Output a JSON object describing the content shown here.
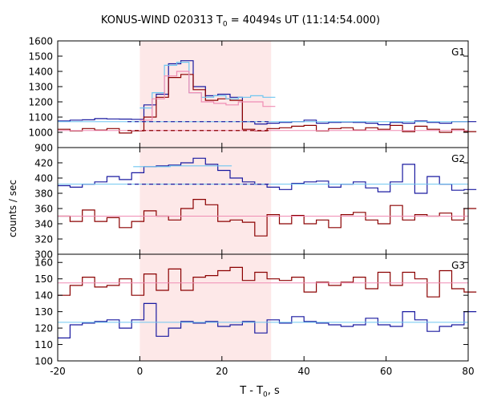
{
  "title": {
    "instrument": "KONUS-WIND 020313 T",
    "t0_sub": "0",
    "rest": " = 40494s UT (11:14:54.000)"
  },
  "xlabel": {
    "main": "T - T",
    "sub": "0",
    "unit": ", s"
  },
  "ylabel": "counts / sec",
  "colors": {
    "blue": "#1a1aa0",
    "red": "#8b0000",
    "light_blue": "#6ec6f0",
    "pink": "#f08cb4",
    "shade": "#fde8e8"
  },
  "chart_data": [
    {
      "type": "line",
      "panel": "G1",
      "xlim": [
        -20,
        80
      ],
      "ylim": [
        900,
        1600
      ],
      "yticks": [
        900,
        1000,
        1100,
        1200,
        1300,
        1400,
        1500,
        1600
      ],
      "xticks": [
        -20,
        0,
        20,
        40,
        60,
        80
      ],
      "shaded_interval": [
        0,
        32
      ],
      "step_width": 3,
      "series": [
        {
          "role": "blue_step",
          "x0": -20,
          "values": [
            1075,
            1080,
            1082,
            1090,
            1088,
            1087,
            1085,
            1180,
            1250,
            1450,
            1470,
            1300,
            1240,
            1250,
            1230,
            1070,
            1055,
            1060,
            1065,
            1070,
            1080,
            1060,
            1065,
            1068,
            1065,
            1060,
            1050,
            1065,
            1060,
            1075,
            1065,
            1060,
            1070,
            1070
          ]
        },
        {
          "role": "red_step",
          "x0": -20,
          "values": [
            1020,
            1010,
            1025,
            1015,
            1025,
            995,
            1010,
            1100,
            1230,
            1360,
            1380,
            1280,
            1210,
            1220,
            1210,
            1020,
            1010,
            1025,
            1030,
            1040,
            1045,
            1010,
            1025,
            1030,
            1015,
            1030,
            1020,
            1045,
            1005,
            1040,
            1020,
            1000,
            1020,
            1005
          ]
        },
        {
          "role": "light_blue_step",
          "x0": 0,
          "values": [
            1160,
            1260,
            1440,
            1460,
            1260,
            1230,
            1240,
            1220,
            1230,
            1240,
            1230
          ]
        },
        {
          "role": "pink_step",
          "x0": 0,
          "values": [
            1080,
            1220,
            1370,
            1400,
            1260,
            1200,
            1190,
            1180,
            1200,
            1200,
            1170
          ]
        },
        {
          "role": "blue_background",
          "level": 1070,
          "dashed_range": [
            -3,
            32
          ]
        },
        {
          "role": "red_background",
          "level": 1012,
          "dashed_range": [
            -3,
            32
          ]
        }
      ]
    },
    {
      "type": "line",
      "panel": "G2",
      "xlim": [
        -20,
        80
      ],
      "ylim": [
        300,
        440
      ],
      "yticks": [
        300,
        320,
        340,
        360,
        380,
        400,
        420
      ],
      "xticks": [
        -20,
        0,
        20,
        40,
        60,
        80
      ],
      "step_width": 3,
      "series": [
        {
          "role": "blue_step",
          "x0": -20,
          "values": [
            390,
            388,
            392,
            395,
            402,
            398,
            407,
            415,
            416,
            417,
            420,
            426,
            418,
            410,
            400,
            395,
            392,
            388,
            385,
            393,
            395,
            396,
            388,
            392,
            395,
            387,
            382,
            395,
            418,
            380,
            402,
            392,
            384,
            385
          ]
        },
        {
          "role": "red_step",
          "x0": -20,
          "values": [
            350,
            343,
            358,
            343,
            348,
            335,
            343,
            357,
            350,
            345,
            360,
            372,
            365,
            343,
            345,
            342,
            324,
            352,
            340,
            351,
            340,
            345,
            335,
            352,
            355,
            345,
            340,
            364,
            345,
            352,
            350,
            354,
            345,
            360
          ]
        },
        {
          "role": "light_blue_step",
          "x0": -1.6,
          "values": [
            415,
            415,
            415,
            416,
            416,
            416,
            416,
            416
          ]
        },
        {
          "role": "blue_background",
          "level": 392,
          "dashed_range": [
            -3,
            32
          ]
        },
        {
          "role": "red_background",
          "level": 350
        }
      ]
    },
    {
      "type": "line",
      "panel": "G3",
      "xlim": [
        -20,
        80
      ],
      "ylim": [
        100,
        165
      ],
      "yticks": [
        100,
        110,
        120,
        130,
        140,
        150,
        160
      ],
      "xticks": [
        -20,
        0,
        20,
        40,
        60,
        80
      ],
      "step_width": 3,
      "series": [
        {
          "role": "blue_step",
          "x0": -20,
          "values": [
            114,
            122,
            123,
            124,
            125,
            120,
            125,
            135,
            115,
            120,
            124,
            123,
            124,
            121,
            122,
            124,
            117,
            125,
            123,
            127,
            124,
            123,
            122,
            121,
            122,
            126,
            122,
            121,
            130,
            125,
            118,
            121,
            122,
            130
          ]
        },
        {
          "role": "red_step",
          "x0": -20,
          "values": [
            140,
            146,
            151,
            145,
            146,
            150,
            140,
            153,
            143,
            156,
            143,
            151,
            152,
            155,
            157,
            149,
            154,
            150,
            149,
            151,
            142,
            148,
            146,
            148,
            151,
            144,
            154,
            146,
            154,
            150,
            139,
            155,
            144,
            142
          ]
        },
        {
          "role": "blue_background",
          "level": 123.5
        },
        {
          "role": "red_background",
          "level": 147.5
        }
      ]
    }
  ],
  "panel_labels": [
    "G1",
    "G2",
    "G3"
  ]
}
